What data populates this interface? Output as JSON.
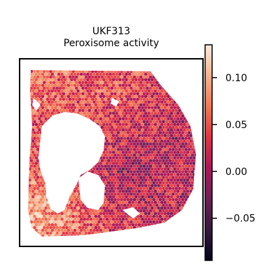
{
  "chart_data": {
    "type": "heatmap",
    "subtype": "spatial-spot-map",
    "title": [
      "UKF313",
      "Peroxisome activity"
    ],
    "xlabel": "",
    "ylabel": "",
    "colorbar": {
      "cmap": "rocket",
      "range": [
        -0.095,
        0.135
      ],
      "ticks": [
        0.1,
        0.05,
        0.0,
        -0.05
      ],
      "tick_labels": [
        "0.10",
        "0.05",
        "0.00",
        "−0.05"
      ],
      "placement": "right"
    },
    "regions": [
      {
        "name": "upper-left tissue",
        "value": 0.06
      },
      {
        "name": "top tissue",
        "value": 0.05
      },
      {
        "name": "right tissue",
        "value": 0.01
      },
      {
        "name": "center-right tissue",
        "value": -0.01
      },
      {
        "name": "lower-left tissue",
        "value": 0.09
      },
      {
        "name": "central lobe",
        "value": 0.03
      }
    ],
    "grid": false
  },
  "colors": {
    "rocket": [
      "#03051a",
      "#35193e",
      "#701f57",
      "#ad1759",
      "#e13342",
      "#f37651",
      "#f6b48f",
      "#faebdd"
    ]
  }
}
